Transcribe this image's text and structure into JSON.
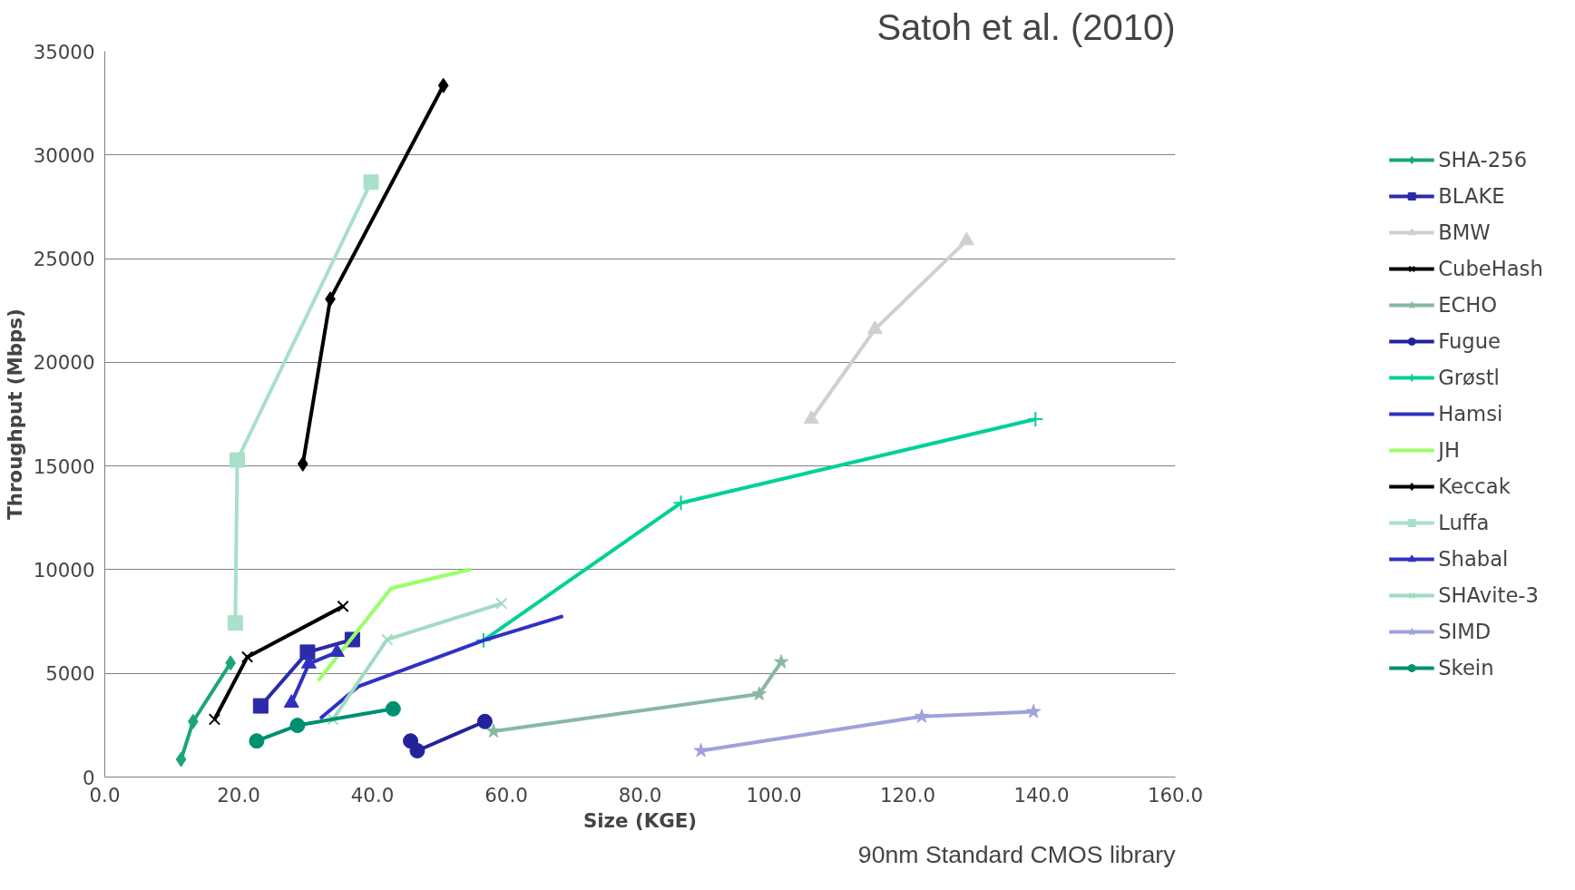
{
  "chart_data": {
    "type": "line",
    "title": "Satoh et al. (2010)",
    "xlabel": "Size (KGE)",
    "ylabel": "Throughput (Mbps)",
    "annotations": [
      "90nm Standard CMOS library"
    ],
    "xlim": [
      0,
      160
    ],
    "ylim": [
      0,
      35000
    ],
    "xticks": [
      {
        "value": 0,
        "label": "0.0"
      },
      {
        "value": 20,
        "label": "20.0"
      },
      {
        "value": 40,
        "label": "40.0"
      },
      {
        "value": 60,
        "label": "60.0"
      },
      {
        "value": 80,
        "label": "80.0"
      },
      {
        "value": 100,
        "label": "100.0"
      },
      {
        "value": 120,
        "label": "120.0"
      },
      {
        "value": 140,
        "label": "140.0"
      },
      {
        "value": 160,
        "label": "160.0"
      }
    ],
    "yticks": [
      0,
      5000,
      10000,
      15000,
      20000,
      25000,
      30000,
      35000
    ],
    "grid": "y",
    "legend": "right",
    "series": [
      {
        "name": "SHA-256",
        "color": "#1aa57a",
        "marker": "diamond",
        "x": [
          11.4,
          13.2,
          18.8
        ],
        "values": [
          850,
          2680,
          5500
        ]
      },
      {
        "name": "BLAKE",
        "color": "#2b2ba8",
        "marker": "square",
        "x": [
          23.3,
          30.3,
          37.0
        ],
        "values": [
          3430,
          6020,
          6630
        ]
      },
      {
        "name": "BMW",
        "color": "#d0d0d0",
        "marker": "triangle",
        "x": [
          105.6,
          115.1,
          128.8
        ],
        "values": [
          17260,
          21590,
          25870
        ]
      },
      {
        "name": "CubeHash",
        "color": "#000000",
        "marker": "x",
        "x": [
          16.4,
          21.3,
          35.6
        ],
        "values": [
          2780,
          5790,
          8230
        ]
      },
      {
        "name": "ECHO",
        "color": "#88b8a0",
        "marker": "star",
        "x": [
          58.1,
          97.8,
          101.1
        ],
        "values": [
          2210,
          4000,
          5550
        ]
      },
      {
        "name": "Fugue",
        "color": "#22229a",
        "marker": "circle",
        "x": [
          45.7,
          46.7,
          56.8
        ],
        "values": [
          1740,
          1270,
          2680
        ]
      },
      {
        "name": "Grøstl",
        "color": "#00d096",
        "marker": "cross",
        "x": [
          56.6,
          86.1,
          139.1
        ],
        "values": [
          6590,
          13220,
          17260
        ]
      },
      {
        "name": "Hamsi",
        "color": "#3030c8",
        "x": [
          32.2,
          37.9,
          56.6,
          68.5
        ],
        "values": [
          2820,
          4370,
          6590,
          7760
        ]
      },
      {
        "name": "JH",
        "color": "#99ff66",
        "x": [
          31.9,
          42.8,
          54.7
        ],
        "values": [
          4650,
          9100,
          10020
        ]
      },
      {
        "name": "Keccak",
        "color": "#000000",
        "marker": "diamond",
        "x": [
          29.6,
          33.7,
          50.6
        ],
        "values": [
          15100,
          23050,
          33350
        ]
      },
      {
        "name": "Luffa",
        "color": "#a8e0c8",
        "marker": "square",
        "x": [
          19.5,
          19.8,
          39.8
        ],
        "values": [
          7430,
          15290,
          28690
        ]
      },
      {
        "name": "Shabal",
        "color": "#3030c0",
        "marker": "triangle",
        "x": [
          27.9,
          30.5,
          34.7
        ],
        "values": [
          3570,
          5460,
          6020
        ]
      },
      {
        "name": "SHAvite-3",
        "color": "#a0dcc0",
        "marker": "x",
        "x": [
          34.1,
          42.2,
          59.3
        ],
        "values": [
          2780,
          6630,
          8370
        ]
      },
      {
        "name": "SIMD",
        "color": "#a0a0dc",
        "marker": "star",
        "x": [
          89.1,
          122.1,
          138.8
        ],
        "values": [
          1270,
          2920,
          3150
        ]
      },
      {
        "name": "Skein",
        "color": "#009070",
        "marker": "circle",
        "x": [
          22.7,
          28.8,
          43.1
        ],
        "values": [
          1740,
          2490,
          3290
        ]
      }
    ]
  }
}
